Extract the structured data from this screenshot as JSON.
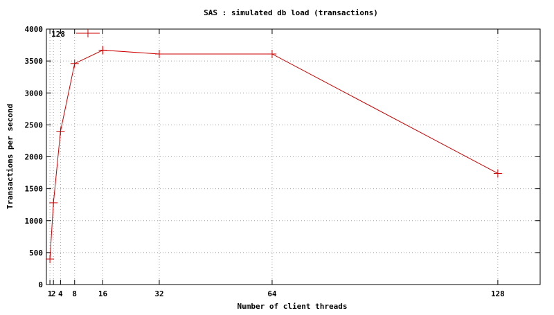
{
  "chart_data": {
    "type": "line",
    "title": "SAS : simulated db load (transactions)",
    "xlabel": "Number of client threads",
    "ylabel": "Transactions per second",
    "xlim": [
      0,
      140
    ],
    "ylim": [
      0,
      4000
    ],
    "xticks": [
      1,
      2,
      4,
      8,
      16,
      32,
      64,
      128
    ],
    "xtick_labels": [
      "1",
      "2",
      "4",
      "8",
      "16",
      "32",
      "64",
      "128"
    ],
    "yticks": [
      0,
      500,
      1000,
      1500,
      2000,
      2500,
      3000,
      3500,
      4000
    ],
    "ytick_labels": [
      "0",
      "500",
      "1000",
      "1500",
      "2000",
      "2500",
      "3000",
      "3500",
      "4000"
    ],
    "grid": true,
    "legend_position": "top-left",
    "series": [
      {
        "name": "128",
        "color": "#cc0000",
        "marker": "plus",
        "x": [
          1,
          2,
          4,
          8,
          16,
          32,
          64,
          128
        ],
        "y": [
          400,
          1280,
          2400,
          3460,
          3670,
          3610,
          3610,
          1740
        ]
      }
    ]
  }
}
